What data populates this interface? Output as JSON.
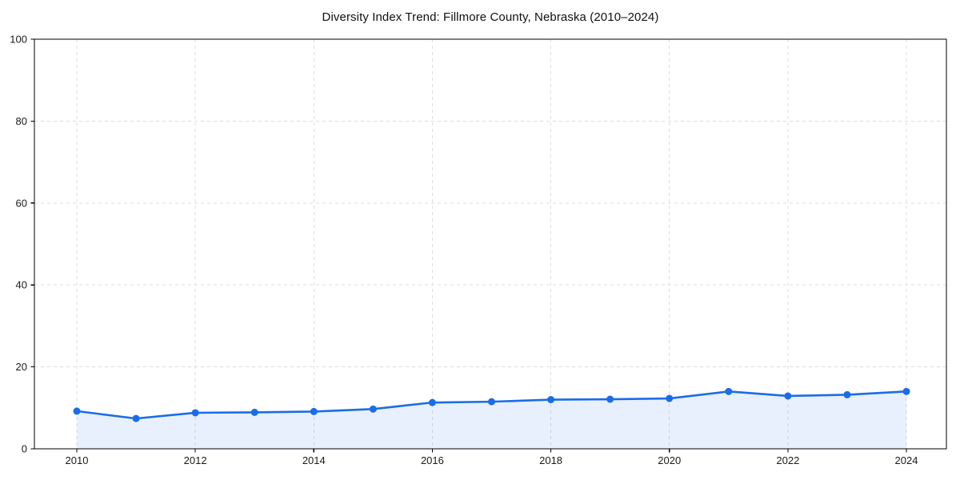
{
  "chart_data": {
    "type": "line",
    "title": "Diversity Index Trend: Fillmore County, Nebraska (2010–2024)",
    "x": [
      2010,
      2011,
      2012,
      2013,
      2014,
      2015,
      2016,
      2017,
      2018,
      2019,
      2020,
      2021,
      2022,
      2023,
      2024
    ],
    "series": [
      {
        "name": "Diversity Index",
        "values": [
          9.2,
          7.4,
          8.8,
          8.9,
          9.1,
          9.7,
          11.3,
          11.5,
          12.0,
          12.1,
          12.3,
          14.0,
          12.9,
          13.2,
          14.0
        ]
      }
    ],
    "xlabel": "",
    "ylabel": "",
    "ylim": [
      0,
      100
    ],
    "yticks": [
      0,
      20,
      40,
      60,
      80,
      100
    ],
    "xticks": [
      2010,
      2012,
      2014,
      2016,
      2018,
      2020,
      2022,
      2024
    ],
    "grid": true,
    "grid_style": "dashed",
    "legend": false,
    "marker": "circle",
    "colors": {
      "line": "#1b6ce8",
      "marker": "#1b6ce8",
      "area_fill": "rgba(27,108,232,0.10)",
      "gridline": "#dedede",
      "spine": "#000000",
      "background": "#ffffff",
      "title_text": "#111111",
      "tick_text": "#1a1a1a"
    }
  }
}
